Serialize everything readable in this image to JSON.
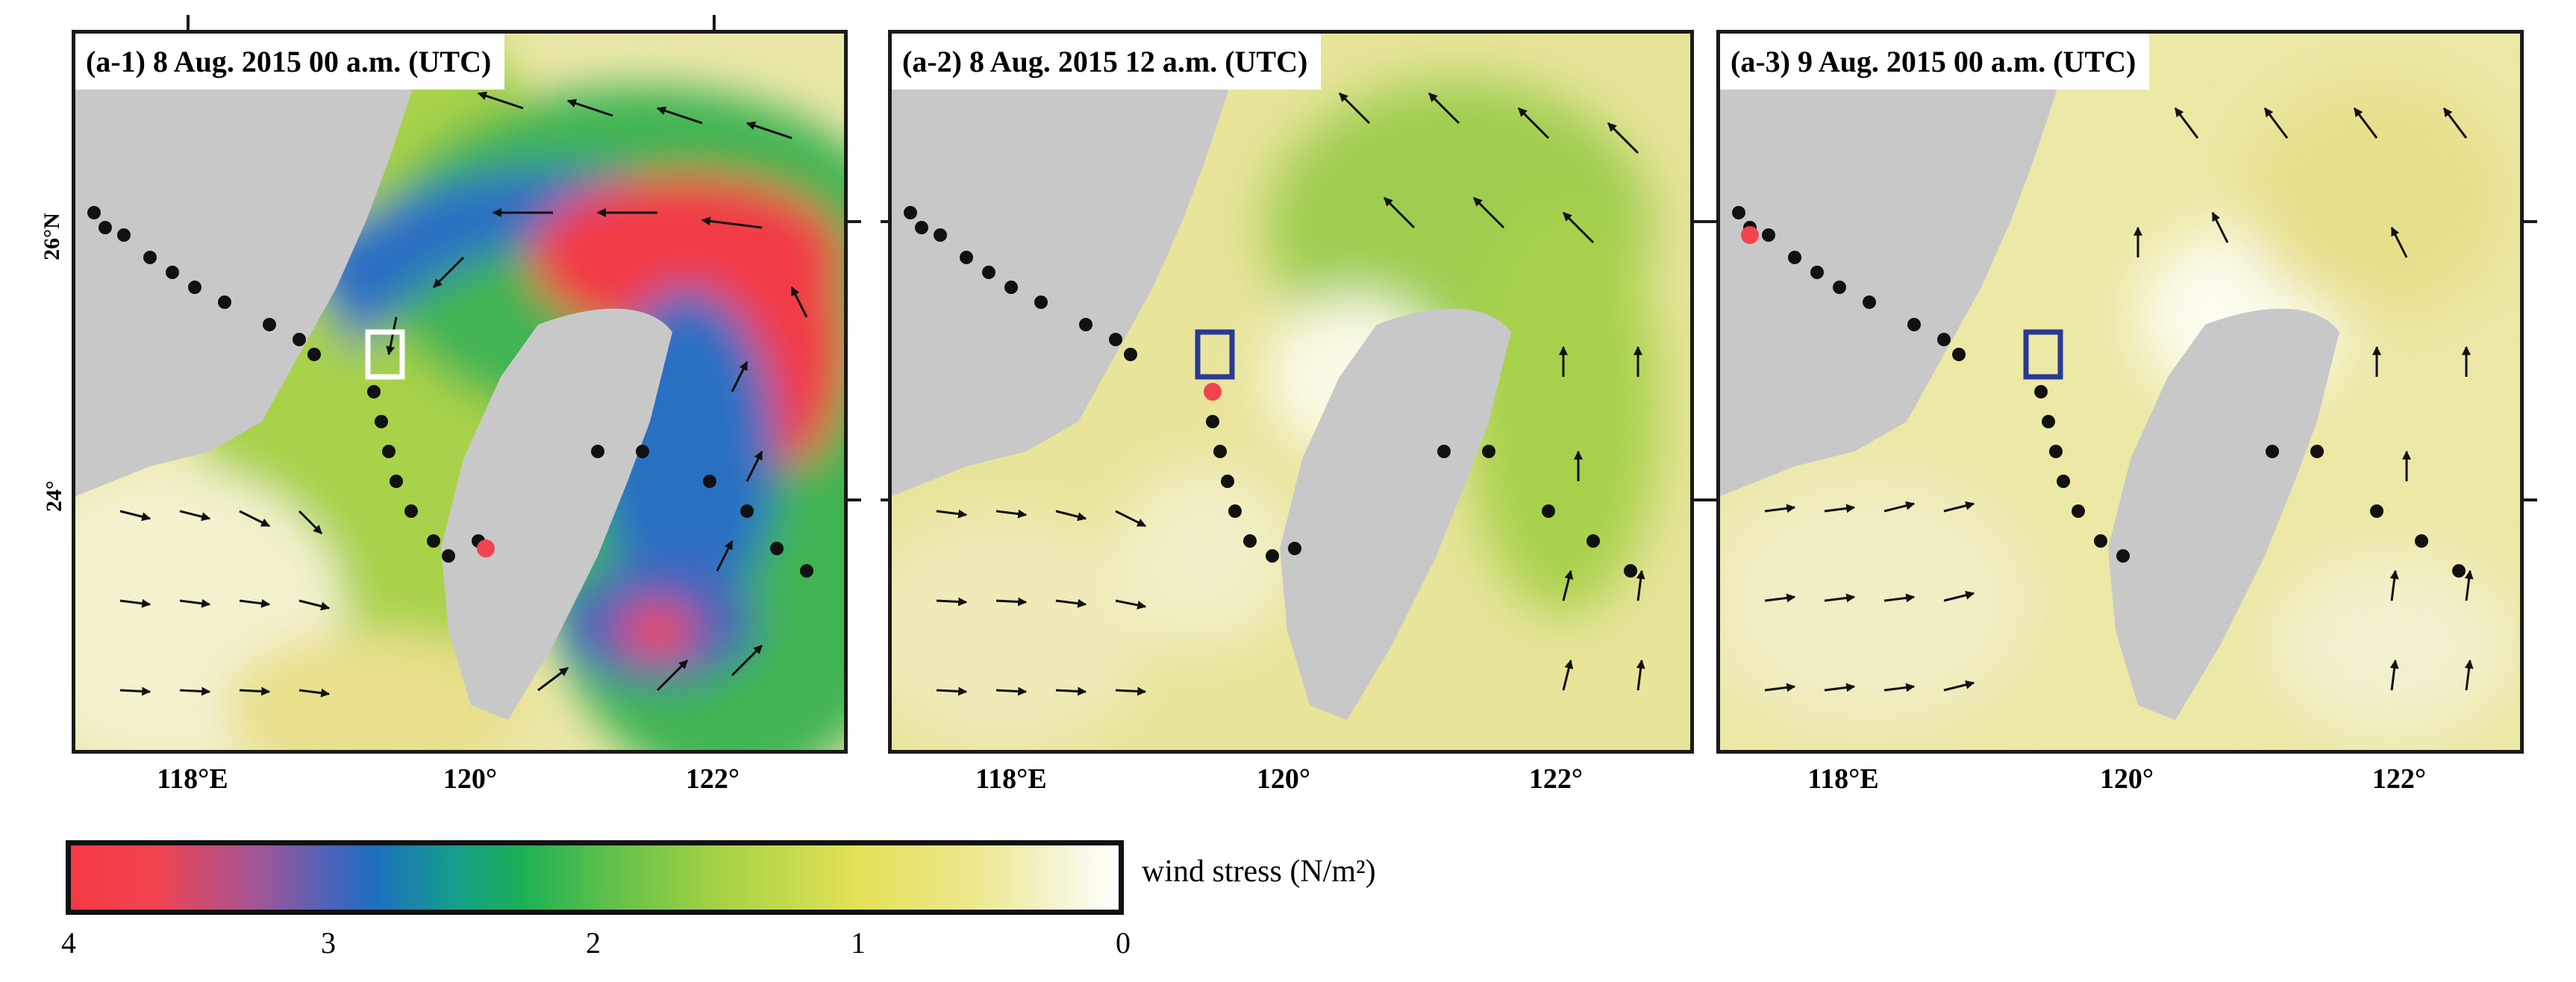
{
  "panels": [
    {
      "title": "(a-1) 8 Aug. 2015 00 a.m. (UTC)",
      "marker_color": "#ffffff"
    },
    {
      "title": "(a-2) 8 Aug. 2015 12 a.m. (UTC)",
      "marker_color": "#283a96"
    },
    {
      "title": "(a-3) 9 Aug. 2015 00 a.m. (UTC)",
      "marker_color": "#283a96"
    }
  ],
  "axes": {
    "x_ticks": [
      "118°E",
      "120°",
      "122°"
    ],
    "y_ticks": [
      "26°N",
      "24°"
    ]
  },
  "colorbar": {
    "label": "wind stress (N/m²)",
    "ticks": [
      "4",
      "3",
      "2",
      "1",
      "0"
    ],
    "colors": [
      "#f53a45",
      "#1e6fc0",
      "#1cb056",
      "#e3e157",
      "#ffffff"
    ]
  }
}
